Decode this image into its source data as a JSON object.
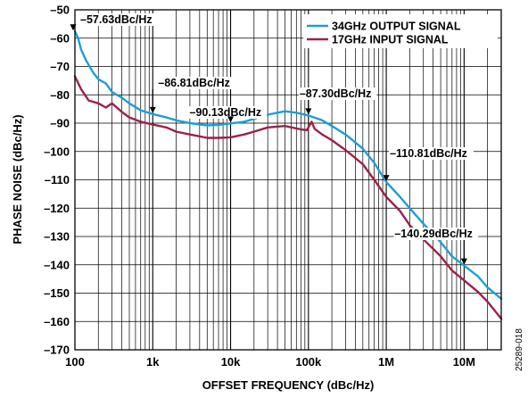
{
  "chart_data": {
    "type": "line",
    "title": "",
    "xlabel": "OFFSET FREQUENCY (dBc/Hz)",
    "ylabel": "PHASE NOISE (dBc/Hz)",
    "x_scale": "log",
    "xlim": [
      100,
      30000000
    ],
    "ylim": [
      -170,
      -50
    ],
    "x_ticks": [
      {
        "value": 100,
        "label": "100"
      },
      {
        "value": 1000,
        "label": "1k"
      },
      {
        "value": 10000,
        "label": "10k"
      },
      {
        "value": 100000,
        "label": "100k"
      },
      {
        "value": 1000000,
        "label": "1M"
      },
      {
        "value": 10000000,
        "label": "10M"
      }
    ],
    "y_ticks": [
      {
        "value": -50,
        "label": "–50"
      },
      {
        "value": -60,
        "label": "–60"
      },
      {
        "value": -70,
        "label": "–70"
      },
      {
        "value": -80,
        "label": "–80"
      },
      {
        "value": -90,
        "label": "–90"
      },
      {
        "value": -100,
        "label": "–100"
      },
      {
        "value": -110,
        "label": "–110"
      },
      {
        "value": -120,
        "label": "–120"
      },
      {
        "value": -130,
        "label": "–130"
      },
      {
        "value": -140,
        "label": "–140"
      },
      {
        "value": -150,
        "label": "–150"
      },
      {
        "value": -160,
        "label": "–160"
      },
      {
        "value": -170,
        "label": "–170"
      }
    ],
    "grid": true,
    "legend_position": "top-right",
    "series": [
      {
        "name": "34GHz OUTPUT SIGNAL",
        "color": "#1a9fd6",
        "points": [
          [
            100,
            -57.6
          ],
          [
            110,
            -60
          ],
          [
            120,
            -64
          ],
          [
            140,
            -68
          ],
          [
            170,
            -72
          ],
          [
            200,
            -74.5
          ],
          [
            250,
            -76
          ],
          [
            300,
            -79
          ],
          [
            400,
            -81
          ],
          [
            500,
            -83
          ],
          [
            700,
            -85.5
          ],
          [
            1000,
            -86.8
          ],
          [
            1500,
            -88
          ],
          [
            2000,
            -89
          ],
          [
            3000,
            -90
          ],
          [
            5000,
            -90.8
          ],
          [
            7000,
            -90.6
          ],
          [
            10000,
            -90.1
          ],
          [
            15000,
            -89.5
          ],
          [
            20000,
            -88.5
          ],
          [
            30000,
            -87
          ],
          [
            50000,
            -85.8
          ],
          [
            70000,
            -86.3
          ],
          [
            100000,
            -87.3
          ],
          [
            150000,
            -89
          ],
          [
            200000,
            -91
          ],
          [
            300000,
            -94
          ],
          [
            500000,
            -99
          ],
          [
            700000,
            -104
          ],
          [
            1000000,
            -110.8
          ],
          [
            1500000,
            -116
          ],
          [
            2000000,
            -120
          ],
          [
            3000000,
            -125.5
          ],
          [
            5000000,
            -132
          ],
          [
            7000000,
            -137
          ],
          [
            10000000,
            -140.3
          ],
          [
            15000000,
            -144
          ],
          [
            20000000,
            -148
          ],
          [
            30000000,
            -152
          ]
        ]
      },
      {
        "name": "17GHz INPUT SIGNAL",
        "color": "#9b2246",
        "points": [
          [
            100,
            -73.5
          ],
          [
            120,
            -78
          ],
          [
            150,
            -82
          ],
          [
            200,
            -83
          ],
          [
            250,
            -84.5
          ],
          [
            300,
            -83
          ],
          [
            400,
            -86
          ],
          [
            500,
            -88
          ],
          [
            700,
            -89.5
          ],
          [
            1000,
            -90.5
          ],
          [
            1500,
            -91.5
          ],
          [
            2000,
            -93
          ],
          [
            3000,
            -94
          ],
          [
            5000,
            -95.2
          ],
          [
            7000,
            -95.2
          ],
          [
            10000,
            -95
          ],
          [
            15000,
            -94
          ],
          [
            20000,
            -93
          ],
          [
            30000,
            -91.5
          ],
          [
            50000,
            -91
          ],
          [
            80000,
            -92.2
          ],
          [
            95000,
            -92.5
          ],
          [
            110000,
            -89.5
          ],
          [
            120000,
            -92
          ],
          [
            150000,
            -94
          ],
          [
            200000,
            -96
          ],
          [
            300000,
            -99.5
          ],
          [
            500000,
            -104.5
          ],
          [
            700000,
            -110
          ],
          [
            1000000,
            -116
          ],
          [
            1500000,
            -121
          ],
          [
            2000000,
            -126
          ],
          [
            3000000,
            -131
          ],
          [
            5000000,
            -137
          ],
          [
            7000000,
            -142
          ],
          [
            10000000,
            -145.5
          ],
          [
            15000000,
            -149.5
          ],
          [
            20000000,
            -153
          ],
          [
            30000000,
            -159
          ]
        ]
      }
    ],
    "annotations": [
      {
        "x": 100,
        "y": -57.63,
        "label": "–57.63dBc/Hz"
      },
      {
        "x": 1000,
        "y": -86.81,
        "label": "–86.81dBc/Hz"
      },
      {
        "x": 10000,
        "y": -90.13,
        "label": "–90.13dBc/Hz"
      },
      {
        "x": 100000,
        "y": -87.3,
        "label": "–87.30dBc/Hz"
      },
      {
        "x": 1000000,
        "y": -110.81,
        "label": "–110.81dBc/Hz"
      },
      {
        "x": 10000000,
        "y": -140.29,
        "label": "–140.29dBc/Hz"
      }
    ],
    "figure_id": "25289-018"
  }
}
